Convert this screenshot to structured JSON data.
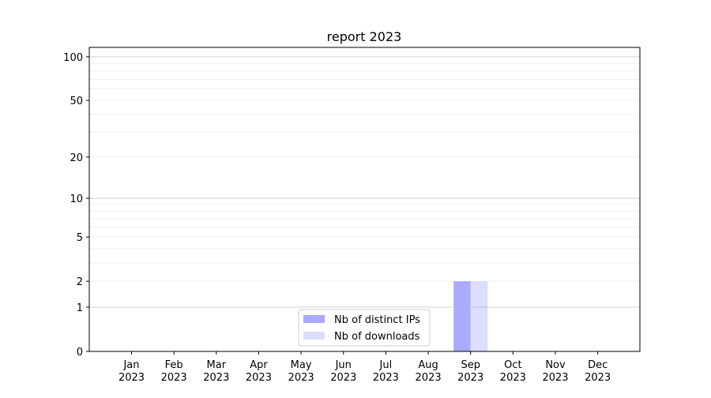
{
  "chart_data": {
    "type": "bar",
    "title": "report 2023",
    "xlabel": "",
    "ylabel": "",
    "y_scale": "log(y+1)",
    "ylim": [
      0,
      116
    ],
    "y_ticks": [
      0,
      1,
      2,
      5,
      10,
      20,
      50,
      100
    ],
    "grid": true,
    "legend_position": "lower-center",
    "categories": [
      [
        "Jan",
        "2023"
      ],
      [
        "Feb",
        "2023"
      ],
      [
        "Mar",
        "2023"
      ],
      [
        "Apr",
        "2023"
      ],
      [
        "May",
        "2023"
      ],
      [
        "Jun",
        "2023"
      ],
      [
        "Jul",
        "2023"
      ],
      [
        "Aug",
        "2023"
      ],
      [
        "Sep",
        "2023"
      ],
      [
        "Oct",
        "2023"
      ],
      [
        "Nov",
        "2023"
      ],
      [
        "Dec",
        "2023"
      ]
    ],
    "series": [
      {
        "name": "Nb of distinct IPs",
        "color": "#aaaaff",
        "values": [
          0,
          0,
          0,
          0,
          0,
          0,
          0,
          0,
          2,
          0,
          0,
          0
        ]
      },
      {
        "name": "Nb of downloads",
        "color": "#ddddff",
        "values": [
          0,
          0,
          0,
          0,
          0,
          0,
          0,
          0,
          2,
          0,
          0,
          0
        ]
      }
    ]
  }
}
